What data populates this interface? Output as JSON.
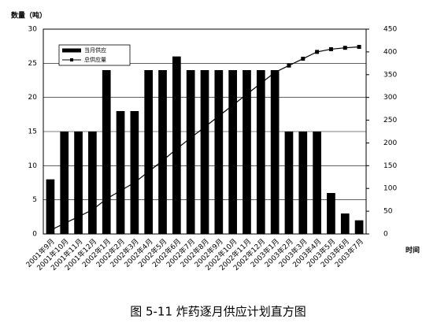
{
  "chart_data": {
    "type": "bar",
    "caption": "图 5-11  炸药逐月供应计划直方图",
    "y_label": "数量（吨）",
    "x_label": "时间",
    "categories": [
      "2001年9月",
      "2001年10月",
      "2001年11月",
      "2001年12月",
      "2002年1月",
      "2002年2月",
      "2002年3月",
      "2002年4月",
      "2002年5月",
      "2002年6月",
      "2002年7月",
      "2002年8月",
      "2002年9月",
      "2002年10月",
      "2002年11月",
      "2002年12月",
      "2003年1月",
      "2003年2月",
      "2003年3月",
      "2003年4月",
      "2003年5月",
      "2003年6月",
      "2003年7月"
    ],
    "series": [
      {
        "name": "当月供应",
        "type": "bar",
        "color": "#000000",
        "values": [
          8,
          15,
          15,
          15,
          24,
          18,
          18,
          24,
          24,
          26,
          24,
          24,
          24,
          24,
          24,
          24,
          24,
          15,
          15,
          15,
          6,
          3,
          2
        ]
      },
      {
        "name": "总供应量",
        "type": "line",
        "axis": "y2",
        "color": "#000000",
        "values": [
          8,
          23,
          38,
          53,
          77,
          95,
          113,
          137,
          161,
          187,
          211,
          235,
          259,
          283,
          307,
          331,
          355,
          370,
          385,
          400,
          406,
          409,
          411
        ]
      }
    ],
    "ylim": [
      0,
      30
    ],
    "yticks": [
      0,
      5,
      10,
      15,
      20,
      25,
      30
    ],
    "y2lim": [
      0,
      450
    ],
    "y2ticks": [
      0,
      50,
      100,
      150,
      200,
      250,
      300,
      350,
      400,
      450
    ],
    "grid": true,
    "legend": "top-left"
  }
}
